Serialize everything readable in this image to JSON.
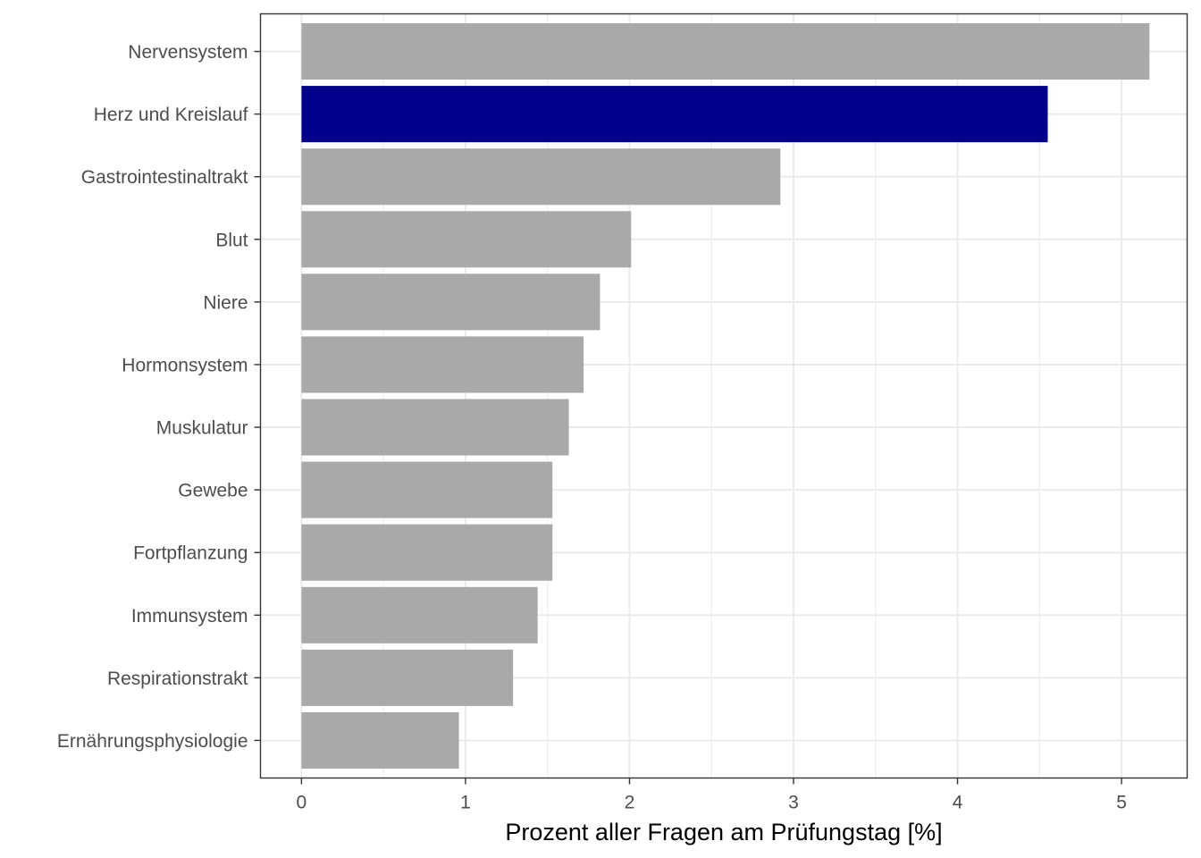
{
  "chart_data": {
    "type": "bar",
    "orientation": "horizontal",
    "title": "",
    "xlabel": "Prozent aller Fragen am Prüfungstag [%]",
    "ylabel": "",
    "xlim": [
      -0.25,
      5.4
    ],
    "xticks": [
      0,
      1,
      2,
      3,
      4,
      5
    ],
    "grid": true,
    "legend": "none",
    "colors": {
      "default": "#A9A9A9",
      "highlight": "#00008B",
      "grid": "#EBEBEB",
      "panel_border": "#333333"
    },
    "categories": [
      "Nervensystem",
      "Herz und Kreislauf",
      "Gastrointestinaltrakt",
      "Blut",
      "Niere",
      "Hormonsystem",
      "Muskulatur",
      "Gewebe",
      "Fortpflanzung",
      "Immunsystem",
      "Respirationstrakt",
      "Ernährungsphysiologie"
    ],
    "values": [
      5.17,
      4.55,
      2.92,
      2.01,
      1.82,
      1.72,
      1.63,
      1.53,
      1.53,
      1.44,
      1.29,
      0.96
    ],
    "highlighted": [
      "Herz und Kreislauf"
    ]
  }
}
